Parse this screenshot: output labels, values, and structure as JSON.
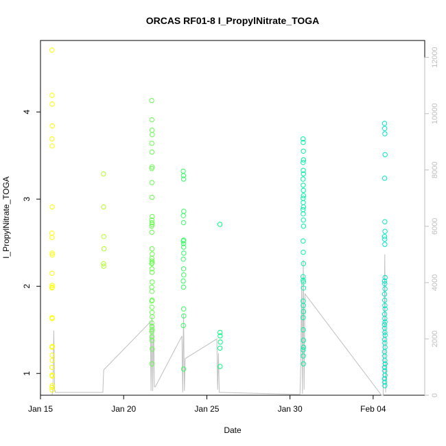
{
  "chart_data": {
    "type": "scatter",
    "title": "ORCAS RF01-8 I_PropylNitrate_TOGA",
    "xlabel": "Date",
    "ylabel": "I_PropylNitrate_TOGA",
    "x_ticks": [
      "Jan 15",
      "Jan 20",
      "Jan 25",
      "Jan 30",
      "Feb 04"
    ],
    "y_ticks": [
      "1",
      "2",
      "3",
      "4"
    ],
    "y2_ticks": [
      "0",
      "2000",
      "4000",
      "6000",
      "8000",
      "10000",
      "12000"
    ],
    "xlim": [
      "Jan 15 (day 15.0)",
      "Feb 06 (day 38.1)"
    ],
    "ylim": [
      0.75,
      4.82
    ],
    "y2lim": [
      0,
      12600
    ],
    "grid": false,
    "colors": {
      "points_gradient": [
        "#ffff00",
        "#00ff80",
        "#00e6c8"
      ],
      "line": "#bebebe",
      "axis": "#000000",
      "y2_axis": "#bebebe"
    },
    "points": [
      {
        "day": 15.7,
        "values": [
          4.71,
          4.19,
          4.09,
          3.84,
          3.69,
          3.61,
          2.91,
          2.61,
          2.56,
          2.38,
          2.36,
          2.15,
          2.01,
          1.99,
          1.98,
          1.64,
          1.63,
          1.31,
          1.3,
          1.21,
          1.15,
          1.07,
          0.98,
          0.97,
          0.86,
          0.84,
          0.81
        ]
      },
      {
        "day": 18.8,
        "values": [
          3.29,
          2.91,
          2.57,
          2.43,
          2.26,
          2.23
        ]
      },
      {
        "day": 21.7,
        "values": [
          4.13,
          3.91,
          3.79,
          3.74,
          3.64,
          3.54,
          3.37,
          3.35,
          3.19,
          3.02,
          2.8,
          2.76,
          2.73,
          2.71,
          2.69,
          2.62,
          2.43,
          2.37,
          2.32,
          2.29,
          2.27,
          2.26,
          2.2,
          2.16,
          2.05,
          1.99,
          1.94,
          1.84,
          1.83,
          1.76,
          1.7,
          1.65,
          1.58,
          1.54,
          1.5,
          1.48,
          1.42,
          1.38,
          1.28,
          1.11
        ]
      },
      {
        "day": 23.6,
        "values": [
          3.32,
          3.27,
          3.23,
          2.86,
          2.81,
          2.73,
          2.53,
          2.52,
          2.49,
          2.45,
          2.38,
          2.31,
          2.2,
          2.13,
          2.06,
          1.99,
          1.74,
          1.66,
          1.55,
          1.05
        ]
      },
      {
        "day": 25.8,
        "values": [
          2.71,
          1.47,
          1.43,
          1.36,
          1.29,
          1.08
        ]
      },
      {
        "day": 30.8,
        "values": [
          3.69,
          3.65,
          3.55,
          3.45,
          3.42,
          3.33,
          3.29,
          3.23,
          3.16,
          3.1,
          3.04,
          3.01,
          2.96,
          2.91,
          2.88,
          2.83,
          2.76,
          2.69,
          2.52,
          2.39,
          2.26,
          2.11,
          2.07,
          2.05,
          1.98,
          1.83,
          1.78,
          1.71,
          1.64,
          1.5,
          1.38,
          1.3,
          1.27,
          1.2,
          1.11
        ]
      },
      {
        "day": 35.7,
        "values": [
          3.87,
          3.81,
          3.75,
          3.51,
          3.24,
          2.74,
          2.63,
          2.57,
          2.54,
          2.48,
          2.1,
          2.06,
          2.03,
          1.97,
          1.91,
          1.84,
          1.78,
          1.74,
          1.68,
          1.63,
          1.59,
          1.56,
          1.52,
          1.47,
          1.44,
          1.39,
          1.35,
          1.3,
          1.25,
          1.2,
          1.15,
          1.11,
          1.07,
          1.03,
          0.98,
          0.94,
          0.9,
          0.86
        ]
      }
    ],
    "secondary_series": {
      "name": "",
      "points": [
        [
          15.7,
          20
        ],
        [
          15.75,
          200
        ],
        [
          15.8,
          2300
        ],
        [
          15.85,
          200
        ],
        [
          15.9,
          100
        ],
        [
          18.7,
          100
        ],
        [
          18.75,
          100
        ],
        [
          18.8,
          900
        ],
        [
          21.6,
          2600
        ],
        [
          21.65,
          150
        ],
        [
          21.7,
          2800
        ],
        [
          21.75,
          150
        ],
        [
          21.8,
          2500
        ],
        [
          21.85,
          300
        ],
        [
          21.9,
          300
        ],
        [
          23.5,
          2100
        ],
        [
          23.55,
          100
        ],
        [
          23.6,
          2900
        ],
        [
          23.65,
          150
        ],
        [
          23.7,
          1300
        ],
        [
          25.6,
          2000
        ],
        [
          25.65,
          200
        ],
        [
          25.7,
          1500
        ],
        [
          25.75,
          100
        ],
        [
          25.8,
          100
        ],
        [
          30.4,
          30
        ],
        [
          30.6,
          30
        ],
        [
          30.65,
          1200
        ],
        [
          30.7,
          4000
        ],
        [
          30.75,
          50
        ],
        [
          30.8,
          4800
        ],
        [
          30.85,
          200
        ],
        [
          30.9,
          3600
        ],
        [
          35.5,
          0
        ],
        [
          35.6,
          0
        ],
        [
          35.65,
          1500
        ],
        [
          35.7,
          5000
        ],
        [
          35.75,
          100
        ],
        [
          35.8,
          1200
        ]
      ]
    }
  }
}
